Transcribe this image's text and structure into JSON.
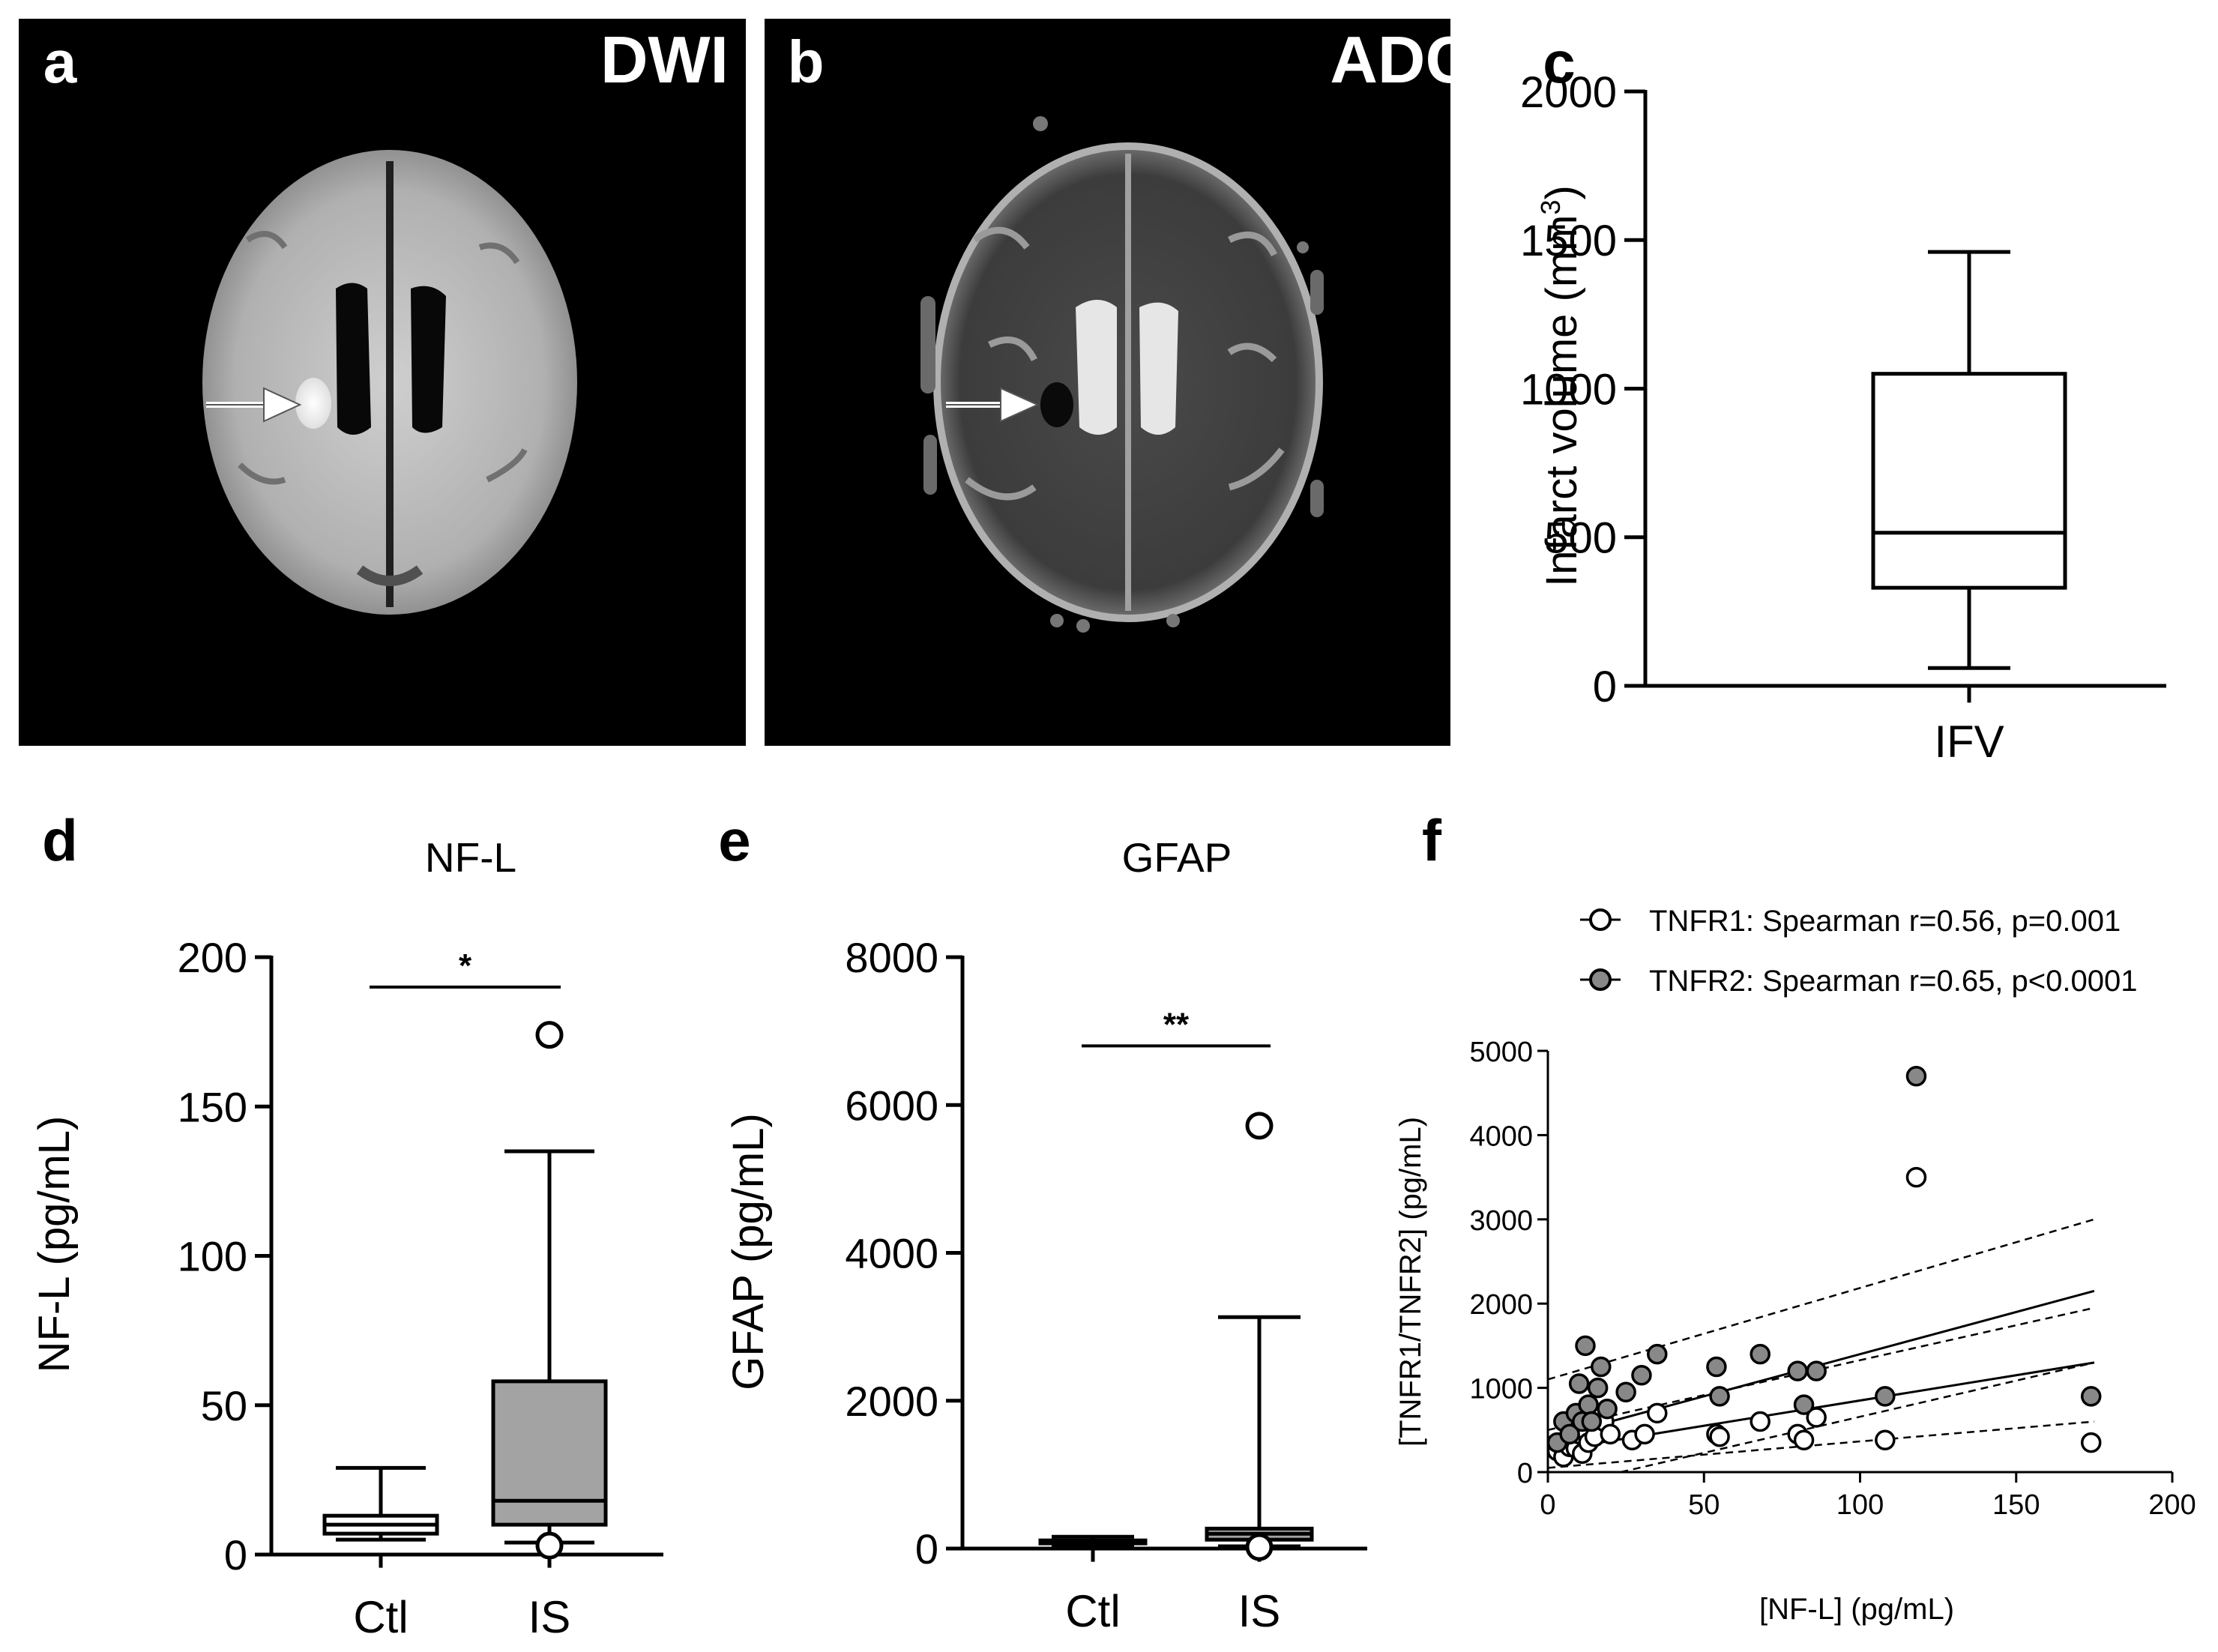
{
  "panels": {
    "a": {
      "letter": "a",
      "label": "DWI"
    },
    "b": {
      "letter": "b",
      "label": "ADC"
    },
    "c": {
      "letter": "c"
    },
    "d": {
      "letter": "d"
    },
    "e": {
      "letter": "e"
    },
    "f": {
      "letter": "f"
    }
  },
  "colors": {
    "gray_fill": "#a3a3a3",
    "scatter_gray": "#888888",
    "black": "#000000",
    "white": "#ffffff"
  },
  "chart_data": [
    {
      "id": "c",
      "type": "box",
      "title": "",
      "ylabel": "Infarct volume (mm3)",
      "ylabel_main": "Infarct volume (mm",
      "ylabel_sup": "3",
      "ylabel_end": ")",
      "xlabel": "",
      "ylim": [
        0,
        2000
      ],
      "yticks": [
        0,
        500,
        1000,
        1500,
        2000
      ],
      "categories": [
        "IFV"
      ],
      "boxes": [
        {
          "name": "IFV",
          "min": 60,
          "q1": 330,
          "median": 515,
          "q3": 1050,
          "max": 1460
        }
      ]
    },
    {
      "id": "d",
      "type": "box",
      "title": "NF-L",
      "ylabel": "NF-L (pg/mL)",
      "xlabel": "",
      "ylim": [
        0,
        200
      ],
      "yticks": [
        0,
        50,
        100,
        150,
        200
      ],
      "categories": [
        "Ctl",
        "IS"
      ],
      "boxes": [
        {
          "name": "Ctl",
          "min": 5,
          "q1": 7,
          "median": 10,
          "q3": 13,
          "max": 29,
          "fill": "white",
          "outliers": []
        },
        {
          "name": "IS",
          "min": 4,
          "q1": 10,
          "median": 18,
          "q3": 58,
          "max": 135,
          "fill": "gray",
          "outliers": [
            174,
            3
          ]
        }
      ],
      "significance": {
        "label": "*",
        "y": 190
      }
    },
    {
      "id": "e",
      "type": "box",
      "title": "GFAP",
      "ylabel": "GFAP (pg/mL)",
      "xlabel": "",
      "ylim": [
        0,
        8000
      ],
      "yticks": [
        0,
        2000,
        4000,
        6000,
        8000
      ],
      "categories": [
        "Ctl",
        "IS"
      ],
      "boxes": [
        {
          "name": "Ctl",
          "min": 50,
          "q1": 70,
          "median": 90,
          "q3": 110,
          "max": 160,
          "fill": "white",
          "outliers": []
        },
        {
          "name": "IS",
          "min": 30,
          "q1": 120,
          "median": 200,
          "q3": 270,
          "max": 3130,
          "fill": "gray",
          "outliers": [
            5720,
            20
          ]
        }
      ],
      "significance": {
        "label": "**",
        "y": 6800
      }
    },
    {
      "id": "f",
      "type": "scatter",
      "title": "",
      "xlabel": "[NF-L] (pg/mL)",
      "ylabel": "[TNFR1/TNFR2] (pg/mL)",
      "xlim": [
        0,
        200
      ],
      "ylim": [
        0,
        5000
      ],
      "xticks": [
        0,
        50,
        100,
        150,
        200
      ],
      "yticks": [
        0,
        1000,
        2000,
        3000,
        4000,
        5000
      ],
      "series": [
        {
          "name": "TNFR1",
          "legend": "TNFR1: Spearman r=0.56, p=0.001",
          "marker": "open",
          "x": [
            3,
            5,
            6,
            7,
            8,
            9,
            10,
            11,
            12,
            13,
            15,
            18,
            20,
            27,
            31,
            35,
            54,
            55,
            68,
            80,
            82,
            86,
            108,
            118,
            174
          ],
          "y": [
            250,
            180,
            350,
            300,
            400,
            280,
            450,
            220,
            500,
            350,
            420,
            600,
            450,
            380,
            450,
            700,
            450,
            420,
            600,
            450,
            380,
            650,
            380,
            3500,
            350
          ],
          "fit": {
            "x0": 0,
            "y0": 250,
            "x1": 175,
            "y1": 1300
          },
          "ci_upper": {
            "x0": 0,
            "y0": 500,
            "x1": 175,
            "y1": 1950
          },
          "ci_lower": {
            "x0": 0,
            "y0": 50,
            "x1": 175,
            "y1": 600
          }
        },
        {
          "name": "TNFR2",
          "legend": "TNFR2: Spearman r=0.65, p<0.0001",
          "marker": "filled",
          "x": [
            3,
            5,
            7,
            9,
            10,
            11,
            12,
            13,
            14,
            16,
            17,
            19,
            25,
            30,
            35,
            54,
            55,
            68,
            80,
            82,
            86,
            108,
            118,
            174
          ],
          "y": [
            350,
            600,
            450,
            700,
            1050,
            600,
            1500,
            800,
            600,
            1000,
            1250,
            750,
            950,
            1150,
            1400,
            1250,
            900,
            1400,
            1200,
            800,
            1200,
            900,
            4700,
            900
          ],
          "fit": {
            "x0": 0,
            "y0": 400,
            "x1": 175,
            "y1": 2150
          },
          "ci_upper": {
            "x0": 0,
            "y0": 1100,
            "x1": 175,
            "y1": 3000
          },
          "ci_lower": {
            "x0": 0,
            "y0": -200,
            "x1": 175,
            "y1": 1300
          }
        }
      ]
    }
  ]
}
